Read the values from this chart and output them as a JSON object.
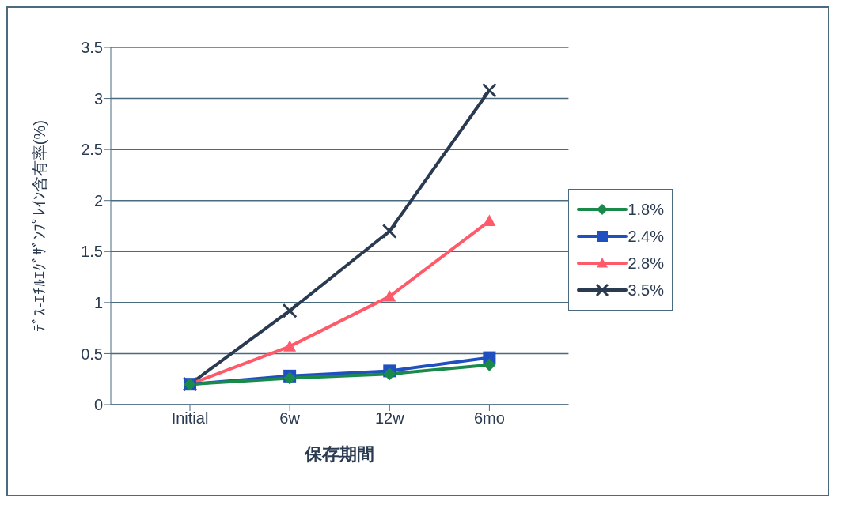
{
  "chart_data": {
    "type": "line",
    "ylabel": "ﾃﾞｽ-ｴﾁﾙｴｸﾞｻﾞﾝﾌﾟﾚｲﾝ含有率(%)",
    "xlabel": "保存期間",
    "categories": [
      "Initial",
      "6w",
      "12w",
      "6mo"
    ],
    "series": [
      {
        "name": "1.8%",
        "color": "#1a8a4a",
        "marker": "diamond",
        "values": [
          0.2,
          0.26,
          0.3,
          0.39
        ]
      },
      {
        "name": "2.4%",
        "color": "#2050c0",
        "marker": "square",
        "values": [
          0.2,
          0.28,
          0.33,
          0.46
        ]
      },
      {
        "name": "2.8%",
        "color": "#ff5a6a",
        "marker": "triangle",
        "values": [
          0.2,
          0.57,
          1.06,
          1.8
        ]
      },
      {
        "name": "3.5%",
        "color": "#2a3a50",
        "marker": "cross",
        "values": [
          0.2,
          0.92,
          1.7,
          3.08
        ]
      }
    ],
    "ylim": [
      0,
      3.5
    ],
    "yticks": [
      0,
      0.5,
      1,
      1.5,
      2,
      2.5,
      3,
      3.5
    ],
    "grid": "y",
    "legend": "right"
  }
}
